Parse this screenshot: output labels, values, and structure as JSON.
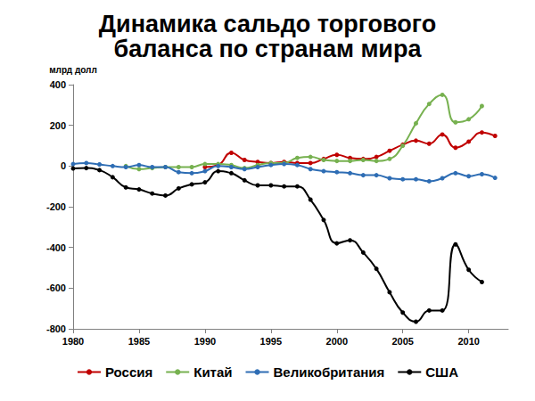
{
  "chart_data": {
    "type": "line",
    "title": "Динамика сальдо торгового\nбаланса по странам мира",
    "y_label": "млрд долл",
    "x": [
      1980,
      1981,
      1982,
      1983,
      1984,
      1985,
      1986,
      1987,
      1988,
      1989,
      1990,
      1991,
      1992,
      1993,
      1994,
      1995,
      1996,
      1997,
      1998,
      1999,
      2000,
      2001,
      2002,
      2003,
      2004,
      2005,
      2006,
      2007,
      2008,
      2009,
      2010,
      2011,
      2012
    ],
    "series": [
      {
        "name": "Россия",
        "color": "#c00000",
        "values": [
          null,
          null,
          null,
          null,
          null,
          null,
          null,
          null,
          null,
          null,
          -5,
          5,
          65,
          30,
          20,
          15,
          20,
          15,
          15,
          35,
          55,
          40,
          35,
          45,
          75,
          105,
          125,
          110,
          155,
          90,
          120,
          165,
          148
        ]
      },
      {
        "name": "Китай",
        "color": "#77b150",
        "values": [
          null,
          null,
          null,
          null,
          0,
          -15,
          -10,
          -5,
          -5,
          -5,
          10,
          10,
          5,
          -10,
          5,
          15,
          15,
          40,
          45,
          30,
          25,
          25,
          30,
          25,
          35,
          100,
          210,
          305,
          350,
          215,
          230,
          295,
          null
        ]
      },
      {
        "name": "Великобритания",
        "color": "#2e6db4",
        "values": [
          10,
          15,
          8,
          0,
          -5,
          5,
          -5,
          -5,
          -30,
          -35,
          -25,
          0,
          -5,
          -15,
          -5,
          5,
          10,
          5,
          -15,
          -25,
          -30,
          -35,
          -45,
          -45,
          -60,
          -65,
          -65,
          -75,
          -60,
          -35,
          -50,
          -40,
          -58
        ]
      },
      {
        "name": "США",
        "color": "#000000",
        "values": [
          -12,
          -10,
          -20,
          -55,
          -105,
          -115,
          -135,
          -145,
          -110,
          -90,
          -80,
          -25,
          -35,
          -70,
          -95,
          -95,
          -100,
          -100,
          -165,
          -265,
          -380,
          -365,
          -425,
          -505,
          -620,
          -720,
          -765,
          -710,
          -710,
          -385,
          -510,
          -570,
          null
        ]
      }
    ],
    "xlim": [
      1980,
      2013
    ],
    "xticks": [
      1980,
      1985,
      1990,
      1995,
      2000,
      2005,
      2010
    ],
    "ylim": [
      -800,
      400
    ],
    "yticks": [
      -800,
      -600,
      -400,
      -200,
      0,
      200,
      400
    ],
    "grid": false,
    "legend": "bottom",
    "marker": "circle"
  }
}
